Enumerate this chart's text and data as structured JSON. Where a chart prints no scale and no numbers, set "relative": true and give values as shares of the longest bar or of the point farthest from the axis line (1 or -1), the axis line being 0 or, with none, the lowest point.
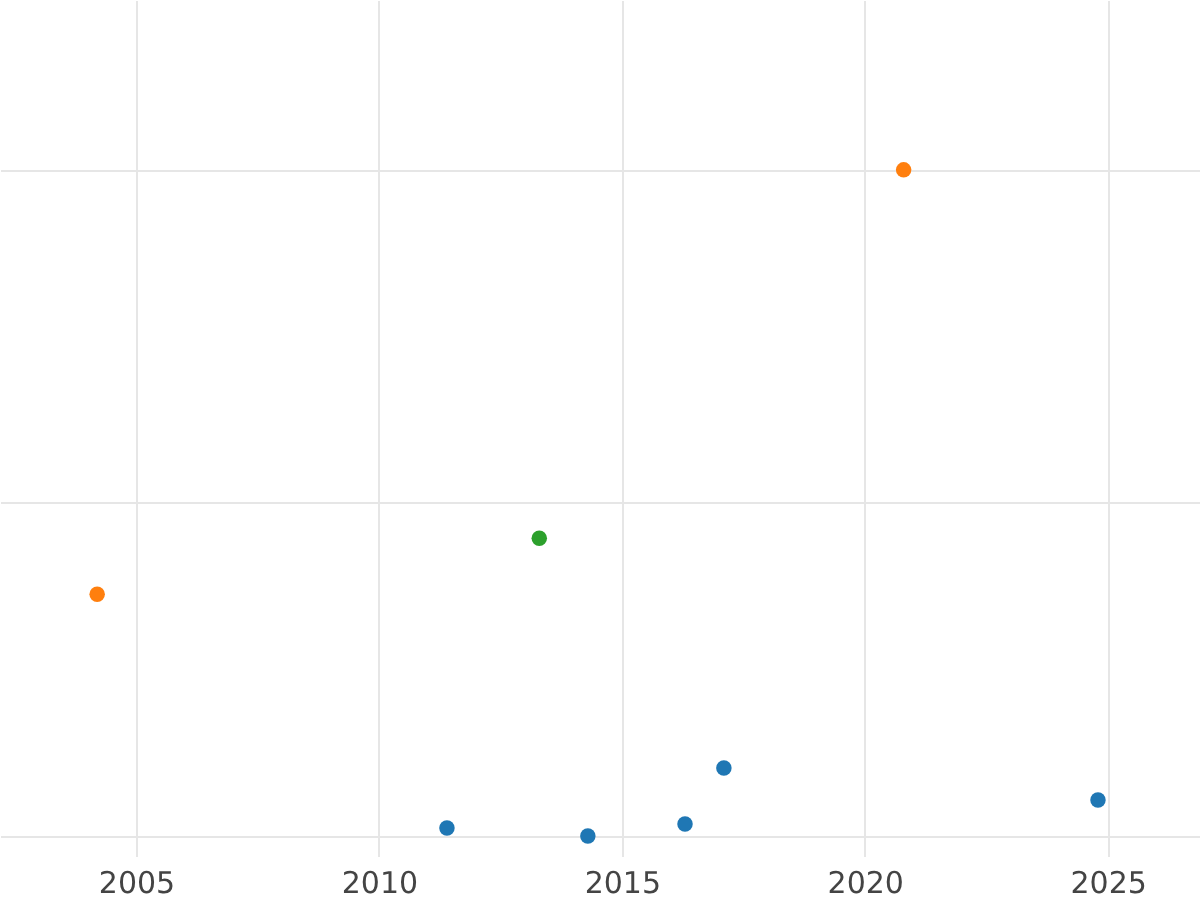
{
  "chart_data": {
    "type": "scatter",
    "relative": true,
    "grid": true,
    "marker": "circle",
    "xlim": [
      2002.2,
      2026.9
    ],
    "xticks": [
      2005,
      2010,
      2015,
      2020,
      2025
    ],
    "series": [
      {
        "color": "#1f77b4",
        "x": [
          2011.4,
          2014.3,
          2016.3,
          2017.1,
          2024.8
        ],
        "values": [
          0.012,
          0,
          0.018,
          0.102,
          0.054
        ]
      },
      {
        "color": "#ff7f0e",
        "x": [
          2004.2,
          2020.8
        ],
        "values": [
          0.363,
          1
        ]
      },
      {
        "color": "#2ca02c",
        "x": [
          2013.3
        ],
        "values": [
          0.447
        ]
      }
    ]
  }
}
